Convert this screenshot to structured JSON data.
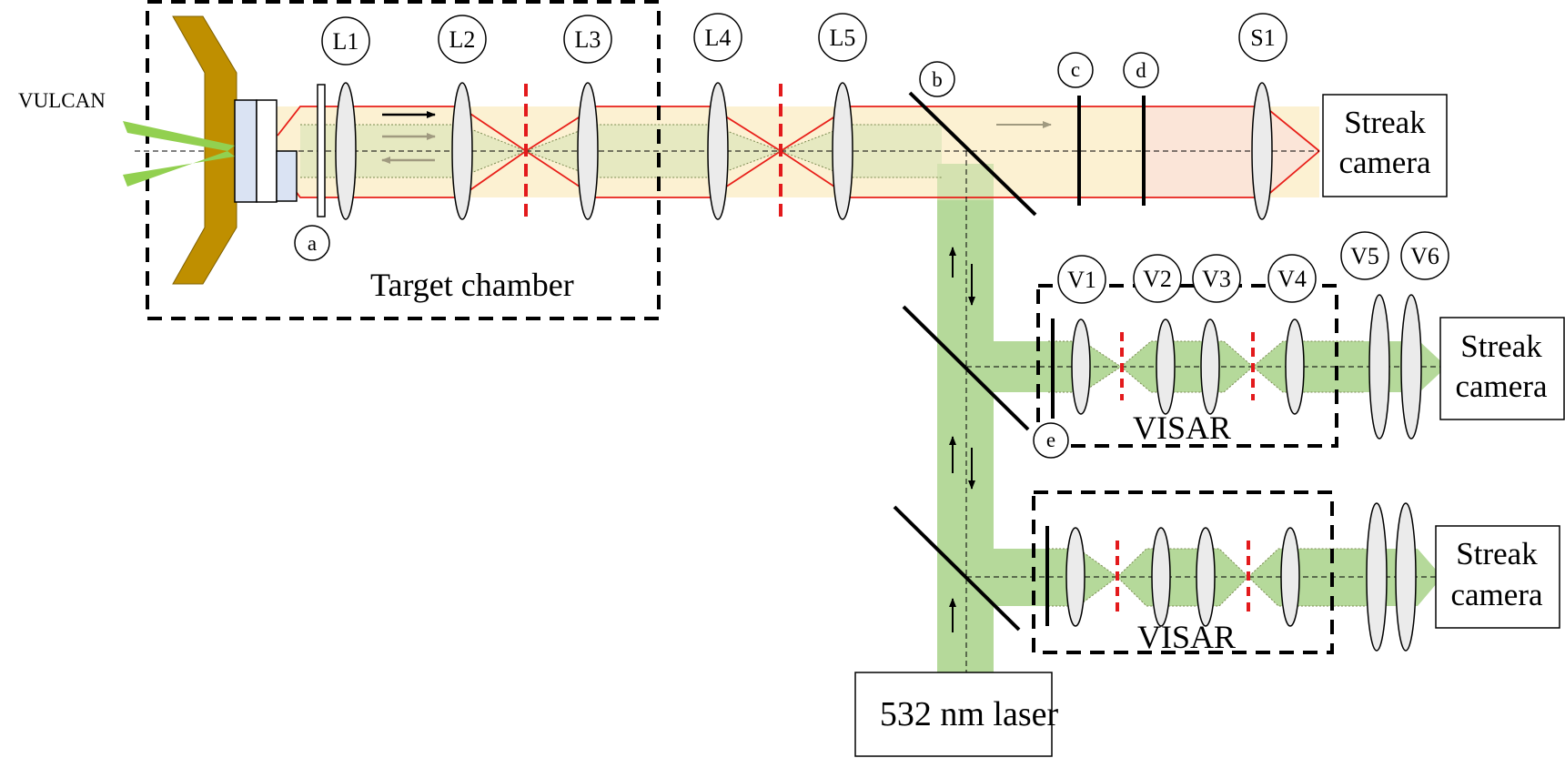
{
  "labels": {
    "vulcan": "VULCAN",
    "target_chamber": "Target chamber",
    "laser": "532 nm laser",
    "visar": "VISAR",
    "streak_camera_line1": "Streak",
    "streak_camera_line2": "camera"
  },
  "lenses": {
    "L1": "L1",
    "L2": "L2",
    "L3": "L3",
    "L4": "L4",
    "L5": "L5",
    "S1": "S1",
    "V1": "V1",
    "V2": "V2",
    "V3": "V3",
    "V4": "V4",
    "V5": "V5",
    "V6": "V6"
  },
  "markers": {
    "a": "a",
    "b": "b",
    "c": "c",
    "d": "d",
    "e": "e"
  },
  "colors": {
    "beam_red": "#e8201a",
    "probe_yellow": "#fbefc8",
    "probe_green": "#b5d99a",
    "mask_red": "#e31a1c",
    "target_gold": "#bf8f00",
    "target_blue": "#dae3f3",
    "vulcan_green": "#92d050"
  }
}
